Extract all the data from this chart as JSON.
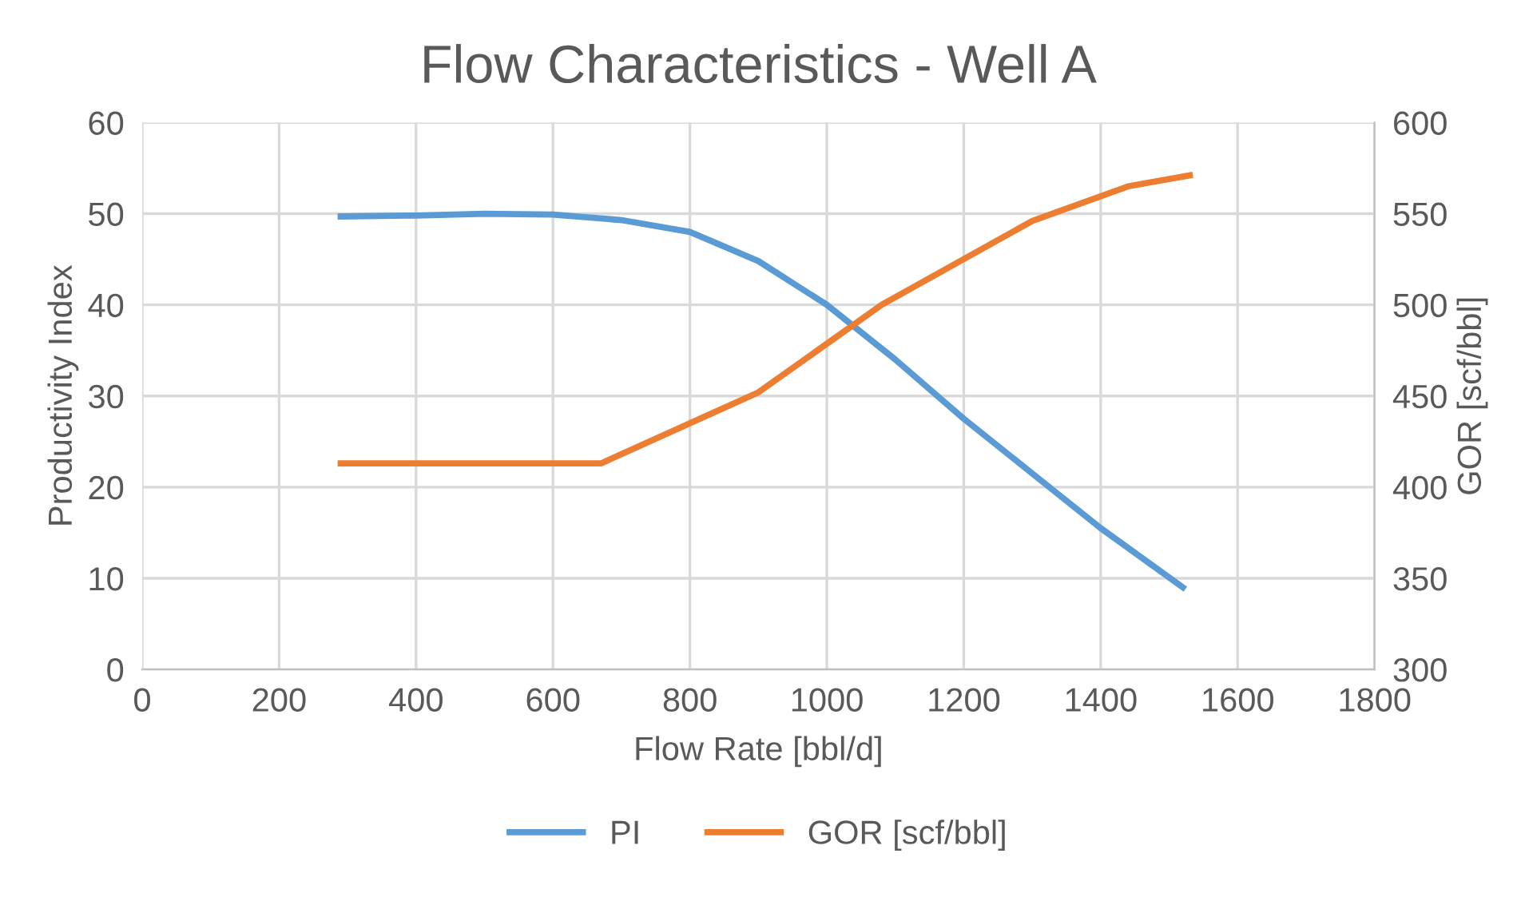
{
  "chart_data": {
    "type": "line",
    "title": "Flow Characteristics - Well A",
    "xlabel": "Flow Rate [bbl/d]",
    "ylabel": "Productivity Index",
    "y2label": "GOR [scf/bbl]",
    "xlim": [
      0,
      1800
    ],
    "xticks": [
      0,
      200,
      400,
      600,
      800,
      1000,
      1200,
      1400,
      1600,
      1800
    ],
    "ylim": [
      0,
      60
    ],
    "yticks": [
      0,
      10,
      20,
      30,
      40,
      50,
      60
    ],
    "y2lim": [
      300,
      600
    ],
    "y2ticks": [
      300,
      350,
      400,
      450,
      500,
      550,
      600
    ],
    "grid": true,
    "legend": "bottom",
    "marker": "none",
    "line_style": "solid",
    "series": [
      {
        "name": "PI",
        "color": "#5b9bd5",
        "x": [
          290,
          400,
          500,
          600,
          700,
          800,
          900,
          1000,
          1100,
          1200,
          1300,
          1400,
          1520
        ],
        "values": [
          49.7,
          49.8,
          50,
          49.9,
          49.3,
          48,
          44.8,
          40,
          34,
          27.5,
          21.5,
          15.5,
          9
        ]
      },
      {
        "name": "GOR [scf/bbl]",
        "color": "#ed7d31",
        "axis": "y2",
        "x": [
          290,
          670,
          900,
          1080,
          1300,
          1440,
          1530
        ],
        "values": [
          413,
          413,
          452,
          500,
          546,
          565,
          571
        ]
      }
    ]
  }
}
